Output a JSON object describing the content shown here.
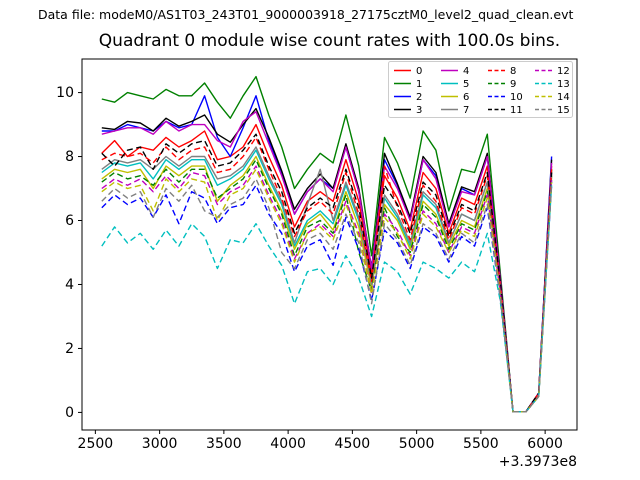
{
  "header": {
    "data_file": "Data file: modeM0/AS1T03_243T01_9000003918_27175cztM0_level2_quad_clean.evt"
  },
  "chart_data": {
    "type": "line",
    "title": "Quadrant 0 module wise count rates with 100.0s bins.",
    "xlabel": "",
    "ylabel": "",
    "grid": false,
    "x_offset_label": "+3.3973e8",
    "xlim": [
      2396,
      6248
    ],
    "ylim": [
      -0.55,
      11.05
    ],
    "xticks": [
      2500,
      3000,
      3500,
      4000,
      4500,
      5000,
      5500,
      6000
    ],
    "yticks": [
      0,
      2,
      4,
      6,
      8,
      10
    ],
    "legend": {
      "position": "upper right",
      "columns": 4
    },
    "x": [
      2550,
      2650,
      2750,
      2850,
      2950,
      3050,
      3150,
      3250,
      3350,
      3450,
      3550,
      3650,
      3750,
      3850,
      3950,
      4050,
      4150,
      4250,
      4350,
      4450,
      4550,
      4650,
      4750,
      4850,
      4950,
      5050,
      5150,
      5250,
      5350,
      5450,
      5550,
      5650,
      5750,
      5850,
      5950,
      6050
    ],
    "series": [
      {
        "name": "0",
        "color": "#ff0000",
        "dashed": false,
        "values": [
          8.1,
          8.5,
          8.0,
          8.3,
          8.2,
          8.6,
          8.3,
          8.5,
          8.8,
          7.9,
          8.0,
          8.3,
          9.0,
          8.0,
          7.1,
          5.8,
          6.6,
          6.9,
          6.6,
          7.9,
          6.6,
          4.3,
          7.4,
          6.7,
          5.7,
          7.5,
          7.0,
          5.6,
          6.7,
          6.5,
          7.7,
          4.1,
          0.02,
          0.02,
          0.6,
          7.7
        ]
      },
      {
        "name": "1",
        "color": "#008000",
        "dashed": false,
        "values": [
          9.8,
          9.7,
          10.0,
          9.9,
          9.8,
          10.1,
          9.9,
          9.9,
          10.3,
          9.7,
          9.2,
          9.9,
          10.5,
          9.3,
          8.3,
          7.0,
          7.6,
          8.1,
          7.8,
          9.3,
          7.7,
          4.9,
          8.6,
          7.8,
          6.7,
          8.8,
          8.2,
          6.3,
          7.6,
          7.5,
          8.7,
          4.4,
          0.02,
          0.02,
          0.6,
          7.6
        ]
      },
      {
        "name": "2",
        "color": "#0000ff",
        "dashed": false,
        "values": [
          8.8,
          8.8,
          9.0,
          8.9,
          8.8,
          9.1,
          8.9,
          9.0,
          9.9,
          8.6,
          8.0,
          8.9,
          9.9,
          8.5,
          7.5,
          6.2,
          6.9,
          7.3,
          7.0,
          8.3,
          6.9,
          4.5,
          7.9,
          7.1,
          6.0,
          7.9,
          7.4,
          5.8,
          7.0,
          6.8,
          8.0,
          4.2,
          0.02,
          0.02,
          0.6,
          8.0
        ]
      },
      {
        "name": "3",
        "color": "#000000",
        "dashed": false,
        "values": [
          8.9,
          8.85,
          9.1,
          9.05,
          8.8,
          9.2,
          8.95,
          9.1,
          9.3,
          8.7,
          8.45,
          9.0,
          9.5,
          8.6,
          7.55,
          6.35,
          7.0,
          7.45,
          7.0,
          8.4,
          7.0,
          4.5,
          8.1,
          7.15,
          6.1,
          8.0,
          7.5,
          5.9,
          7.05,
          6.9,
          8.1,
          4.25,
          0.02,
          0.02,
          0.6,
          7.9
        ]
      },
      {
        "name": "4",
        "color": "#bf00bf",
        "dashed": false,
        "values": [
          8.7,
          8.8,
          8.9,
          8.9,
          8.7,
          9.1,
          8.8,
          9.0,
          9.0,
          8.5,
          8.3,
          9.1,
          9.4,
          8.4,
          7.4,
          6.2,
          6.9,
          7.3,
          6.9,
          8.3,
          6.9,
          4.5,
          7.7,
          7.0,
          6.0,
          7.9,
          7.3,
          5.8,
          6.9,
          6.8,
          8.0,
          4.2,
          0.02,
          0.02,
          0.6,
          7.8
        ]
      },
      {
        "name": "5",
        "color": "#00bfbf",
        "dashed": false,
        "values": [
          7.5,
          7.8,
          7.7,
          7.8,
          7.3,
          7.9,
          7.6,
          7.9,
          7.9,
          7.1,
          7.3,
          7.6,
          8.2,
          7.3,
          6.5,
          5.2,
          6.0,
          6.3,
          5.9,
          7.1,
          6.0,
          3.9,
          6.7,
          6.1,
          5.2,
          6.8,
          6.4,
          5.3,
          6.2,
          6.0,
          7.2,
          3.9,
          0.02,
          0.02,
          0.55,
          7.4
        ]
      },
      {
        "name": "6",
        "color": "#bfbf00",
        "dashed": false,
        "values": [
          7.3,
          7.6,
          7.5,
          7.6,
          7.0,
          7.7,
          7.4,
          7.7,
          7.7,
          6.6,
          7.1,
          7.4,
          8.0,
          7.1,
          6.3,
          5.1,
          5.9,
          6.2,
          5.7,
          6.9,
          5.8,
          3.9,
          6.5,
          6.0,
          5.1,
          6.6,
          6.2,
          5.2,
          6.0,
          5.8,
          7.0,
          3.9,
          0.02,
          0.02,
          0.5,
          7.4
        ]
      },
      {
        "name": "7",
        "color": "#808080",
        "dashed": false,
        "values": [
          7.6,
          7.9,
          7.8,
          7.9,
          7.6,
          8.0,
          7.7,
          8.0,
          8.0,
          7.3,
          7.4,
          7.7,
          8.3,
          7.4,
          6.6,
          5.3,
          6.5,
          7.6,
          6.0,
          7.2,
          6.1,
          4.0,
          6.8,
          6.2,
          5.3,
          6.9,
          6.5,
          5.3,
          6.2,
          6.0,
          7.2,
          4.0,
          0.02,
          0.02,
          0.55,
          7.5
        ]
      },
      {
        "name": "8",
        "color": "#ff0000",
        "dashed": true,
        "values": [
          7.9,
          8.1,
          8.0,
          8.1,
          7.8,
          8.3,
          7.9,
          8.2,
          8.3,
          7.5,
          7.6,
          8.0,
          8.6,
          7.6,
          6.7,
          5.5,
          6.3,
          6.6,
          6.2,
          7.5,
          6.2,
          4.1,
          7.7,
          6.4,
          5.4,
          7.1,
          6.6,
          5.4,
          6.4,
          6.2,
          7.4,
          4.0,
          0.02,
          0.02,
          0.6,
          7.6
        ]
      },
      {
        "name": "9",
        "color": "#008000",
        "dashed": true,
        "values": [
          7.2,
          7.5,
          7.3,
          7.4,
          7.1,
          7.6,
          7.2,
          7.6,
          7.6,
          6.7,
          7.0,
          7.3,
          7.9,
          7.0,
          6.2,
          4.9,
          5.8,
          6.0,
          5.6,
          6.8,
          5.0,
          3.8,
          6.4,
          5.5,
          5.0,
          6.5,
          6.1,
          5.1,
          5.9,
          5.7,
          6.9,
          3.8,
          0.02,
          0.02,
          0.5,
          7.3
        ]
      },
      {
        "name": "10",
        "color": "#0000ff",
        "dashed": true,
        "values": [
          6.4,
          6.8,
          6.5,
          6.7,
          6.1,
          6.8,
          5.9,
          6.9,
          6.7,
          5.9,
          6.4,
          6.5,
          7.1,
          6.2,
          5.6,
          4.4,
          5.2,
          5.4,
          4.6,
          6.1,
          5.1,
          3.5,
          5.7,
          5.3,
          4.5,
          5.8,
          5.5,
          4.7,
          5.5,
          5.2,
          6.4,
          3.6,
          0.02,
          0.02,
          0.5,
          7.1
        ]
      },
      {
        "name": "11",
        "color": "#000000",
        "dashed": true,
        "values": [
          8.1,
          7.7,
          8.2,
          8.3,
          7.6,
          8.4,
          8.1,
          8.4,
          8.5,
          7.7,
          7.8,
          8.2,
          8.7,
          7.7,
          6.9,
          5.6,
          6.4,
          6.7,
          6.4,
          7.6,
          6.4,
          4.2,
          7.1,
          6.5,
          5.6,
          7.2,
          6.8,
          5.5,
          6.5,
          6.3,
          7.5,
          4.1,
          0.02,
          0.02,
          0.6,
          7.5
        ]
      },
      {
        "name": "12",
        "color": "#bf00bf",
        "dashed": true,
        "values": [
          7.0,
          7.3,
          7.1,
          7.3,
          6.9,
          7.4,
          7.0,
          7.5,
          7.4,
          6.5,
          6.9,
          7.1,
          7.7,
          6.8,
          6.0,
          4.8,
          5.6,
          5.9,
          5.5,
          6.6,
          5.6,
          3.7,
          6.2,
          5.7,
          4.9,
          6.3,
          5.9,
          5.0,
          5.8,
          5.6,
          6.8,
          3.8,
          0.02,
          0.02,
          0.5,
          7.3
        ]
      },
      {
        "name": "13",
        "color": "#00bfbf",
        "dashed": true,
        "values": [
          5.2,
          5.8,
          5.3,
          5.6,
          5.1,
          5.7,
          5.2,
          5.9,
          5.5,
          4.5,
          5.4,
          5.3,
          5.9,
          5.2,
          4.6,
          3.4,
          4.4,
          4.5,
          4.0,
          4.9,
          4.2,
          3.0,
          4.7,
          4.4,
          3.7,
          4.7,
          4.5,
          4.2,
          4.7,
          4.4,
          5.6,
          3.5,
          0.02,
          0.02,
          0.5,
          7.1
        ]
      },
      {
        "name": "14",
        "color": "#bfbf00",
        "dashed": true,
        "values": [
          6.9,
          7.2,
          7.0,
          7.1,
          6.3,
          7.3,
          6.9,
          7.3,
          7.2,
          6.0,
          6.8,
          7.0,
          7.6,
          6.7,
          5.9,
          4.7,
          5.6,
          5.8,
          5.4,
          6.5,
          5.5,
          3.7,
          6.1,
          5.6,
          4.8,
          6.2,
          5.8,
          5.0,
          5.7,
          5.5,
          6.7,
          3.7,
          0.02,
          0.02,
          0.5,
          7.2
        ]
      },
      {
        "name": "15",
        "color": "#808080",
        "dashed": true,
        "values": [
          6.6,
          7.0,
          6.7,
          6.9,
          6.1,
          7.0,
          6.6,
          7.1,
          6.3,
          6.1,
          6.5,
          6.7,
          7.3,
          6.4,
          5.0,
          4.5,
          5.4,
          5.6,
          5.1,
          6.2,
          5.3,
          3.4,
          5.9,
          5.4,
          4.6,
          5.9,
          5.6,
          4.8,
          5.6,
          5.3,
          6.5,
          3.6,
          0.02,
          0.02,
          0.5,
          7.2
        ]
      }
    ]
  }
}
